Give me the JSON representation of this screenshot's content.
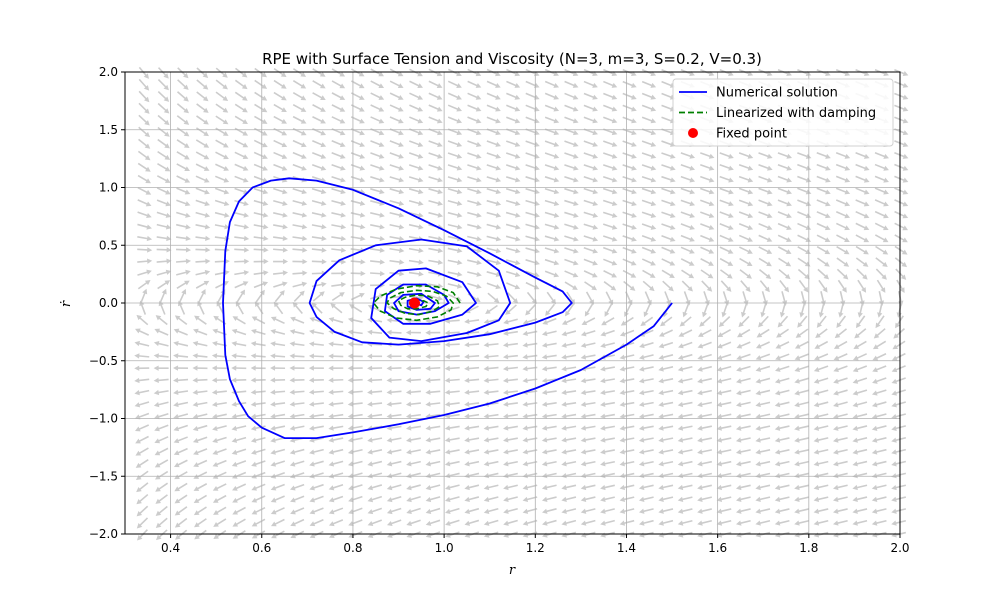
{
  "chart_data": {
    "type": "line",
    "title": "RPE with Surface Tension and Viscosity (N=3, m=3, S=0.2, V=0.3)",
    "xlabel": "r",
    "ylabel": "ṙ",
    "xlim": [
      0.3,
      2.0
    ],
    "ylim": [
      -2.0,
      2.0
    ],
    "xticks": [
      "0.4",
      "0.6",
      "0.8",
      "1.0",
      "1.2",
      "1.4",
      "1.6",
      "1.8",
      "2.0"
    ],
    "yticks": [
      "−2.0",
      "−1.5",
      "−1.0",
      "−0.5",
      "0.0",
      "0.5",
      "1.0",
      "1.5",
      "2.0"
    ],
    "grid": true,
    "legend_position": "top-right",
    "vector_field": {
      "color": "#cccccc",
      "description": "direction field arrows"
    },
    "series": [
      {
        "name": "Numerical solution",
        "style": "solid",
        "color": "#0000ff",
        "x": [
          1.5,
          1.46,
          1.4,
          1.3,
          1.2,
          1.1,
          1.0,
          0.9,
          0.8,
          0.72,
          0.65,
          0.6,
          0.57,
          0.55,
          0.53,
          0.52,
          0.515,
          0.52,
          0.53,
          0.55,
          0.58,
          0.62,
          0.66,
          0.72,
          0.8,
          0.9,
          1.0,
          1.1,
          1.2,
          1.26,
          1.28,
          1.26,
          1.2,
          1.1,
          1.0,
          0.9,
          0.82,
          0.76,
          0.72,
          0.705,
          0.72,
          0.77,
          0.85,
          0.95,
          1.05,
          1.12,
          1.145,
          1.12,
          1.05,
          0.95,
          0.88,
          0.84,
          0.85,
          0.9,
          0.96,
          1.04,
          1.07,
          1.04,
          0.97,
          0.91,
          0.87,
          0.875,
          0.91,
          0.96,
          1.0,
          1.01,
          0.98,
          0.94,
          0.9,
          0.89,
          0.91,
          0.95,
          0.98,
          0.97,
          0.94,
          0.92,
          0.92,
          0.94,
          0.955,
          0.95,
          0.935
        ],
        "y": [
          0.0,
          -0.2,
          -0.36,
          -0.58,
          -0.74,
          -0.87,
          -0.97,
          -1.05,
          -1.12,
          -1.17,
          -1.17,
          -1.08,
          -0.98,
          -0.85,
          -0.66,
          -0.45,
          0.0,
          0.45,
          0.7,
          0.88,
          1.0,
          1.06,
          1.08,
          1.06,
          0.98,
          0.82,
          0.63,
          0.43,
          0.22,
          0.1,
          0.0,
          -0.08,
          -0.17,
          -0.27,
          -0.33,
          -0.36,
          -0.34,
          -0.25,
          -0.12,
          0.0,
          0.19,
          0.37,
          0.5,
          0.55,
          0.49,
          0.28,
          0.0,
          -0.15,
          -0.26,
          -0.33,
          -0.3,
          -0.13,
          0.12,
          0.28,
          0.3,
          0.18,
          0.0,
          -0.1,
          -0.18,
          -0.18,
          -0.07,
          0.07,
          0.16,
          0.16,
          0.07,
          0.0,
          -0.07,
          -0.1,
          -0.07,
          0.0,
          0.07,
          0.08,
          0.0,
          -0.05,
          -0.06,
          -0.03,
          0.02,
          0.04,
          0.01,
          -0.02,
          0.0
        ]
      },
      {
        "name": "Linearized with damping",
        "style": "dashed",
        "color": "#008000",
        "x": [
          1.035,
          1.02,
          0.985,
          0.94,
          0.895,
          0.86,
          0.845,
          0.86,
          0.895,
          0.94,
          0.985,
          1.015,
          1.02,
          1.005,
          0.975,
          0.94,
          0.905,
          0.88,
          0.875,
          0.89,
          0.915,
          0.945,
          0.975,
          0.99,
          0.985,
          0.965,
          0.94,
          0.915,
          0.9,
          0.905,
          0.92,
          0.94,
          0.96,
          0.965,
          0.955,
          0.94
        ],
        "y": [
          0.0,
          0.09,
          0.14,
          0.15,
          0.12,
          0.06,
          0.0,
          -0.07,
          -0.13,
          -0.15,
          -0.12,
          -0.06,
          0.0,
          0.06,
          0.1,
          0.11,
          0.09,
          0.04,
          0.0,
          -0.05,
          -0.09,
          -0.1,
          -0.07,
          -0.03,
          0.02,
          0.06,
          0.07,
          0.05,
          0.02,
          -0.02,
          -0.05,
          -0.05,
          -0.03,
          0.0,
          0.02,
          0.0
        ]
      }
    ],
    "fixed_point": {
      "name": "Fixed point",
      "x": 0.935,
      "y": 0.0,
      "color": "#ff0000"
    }
  }
}
